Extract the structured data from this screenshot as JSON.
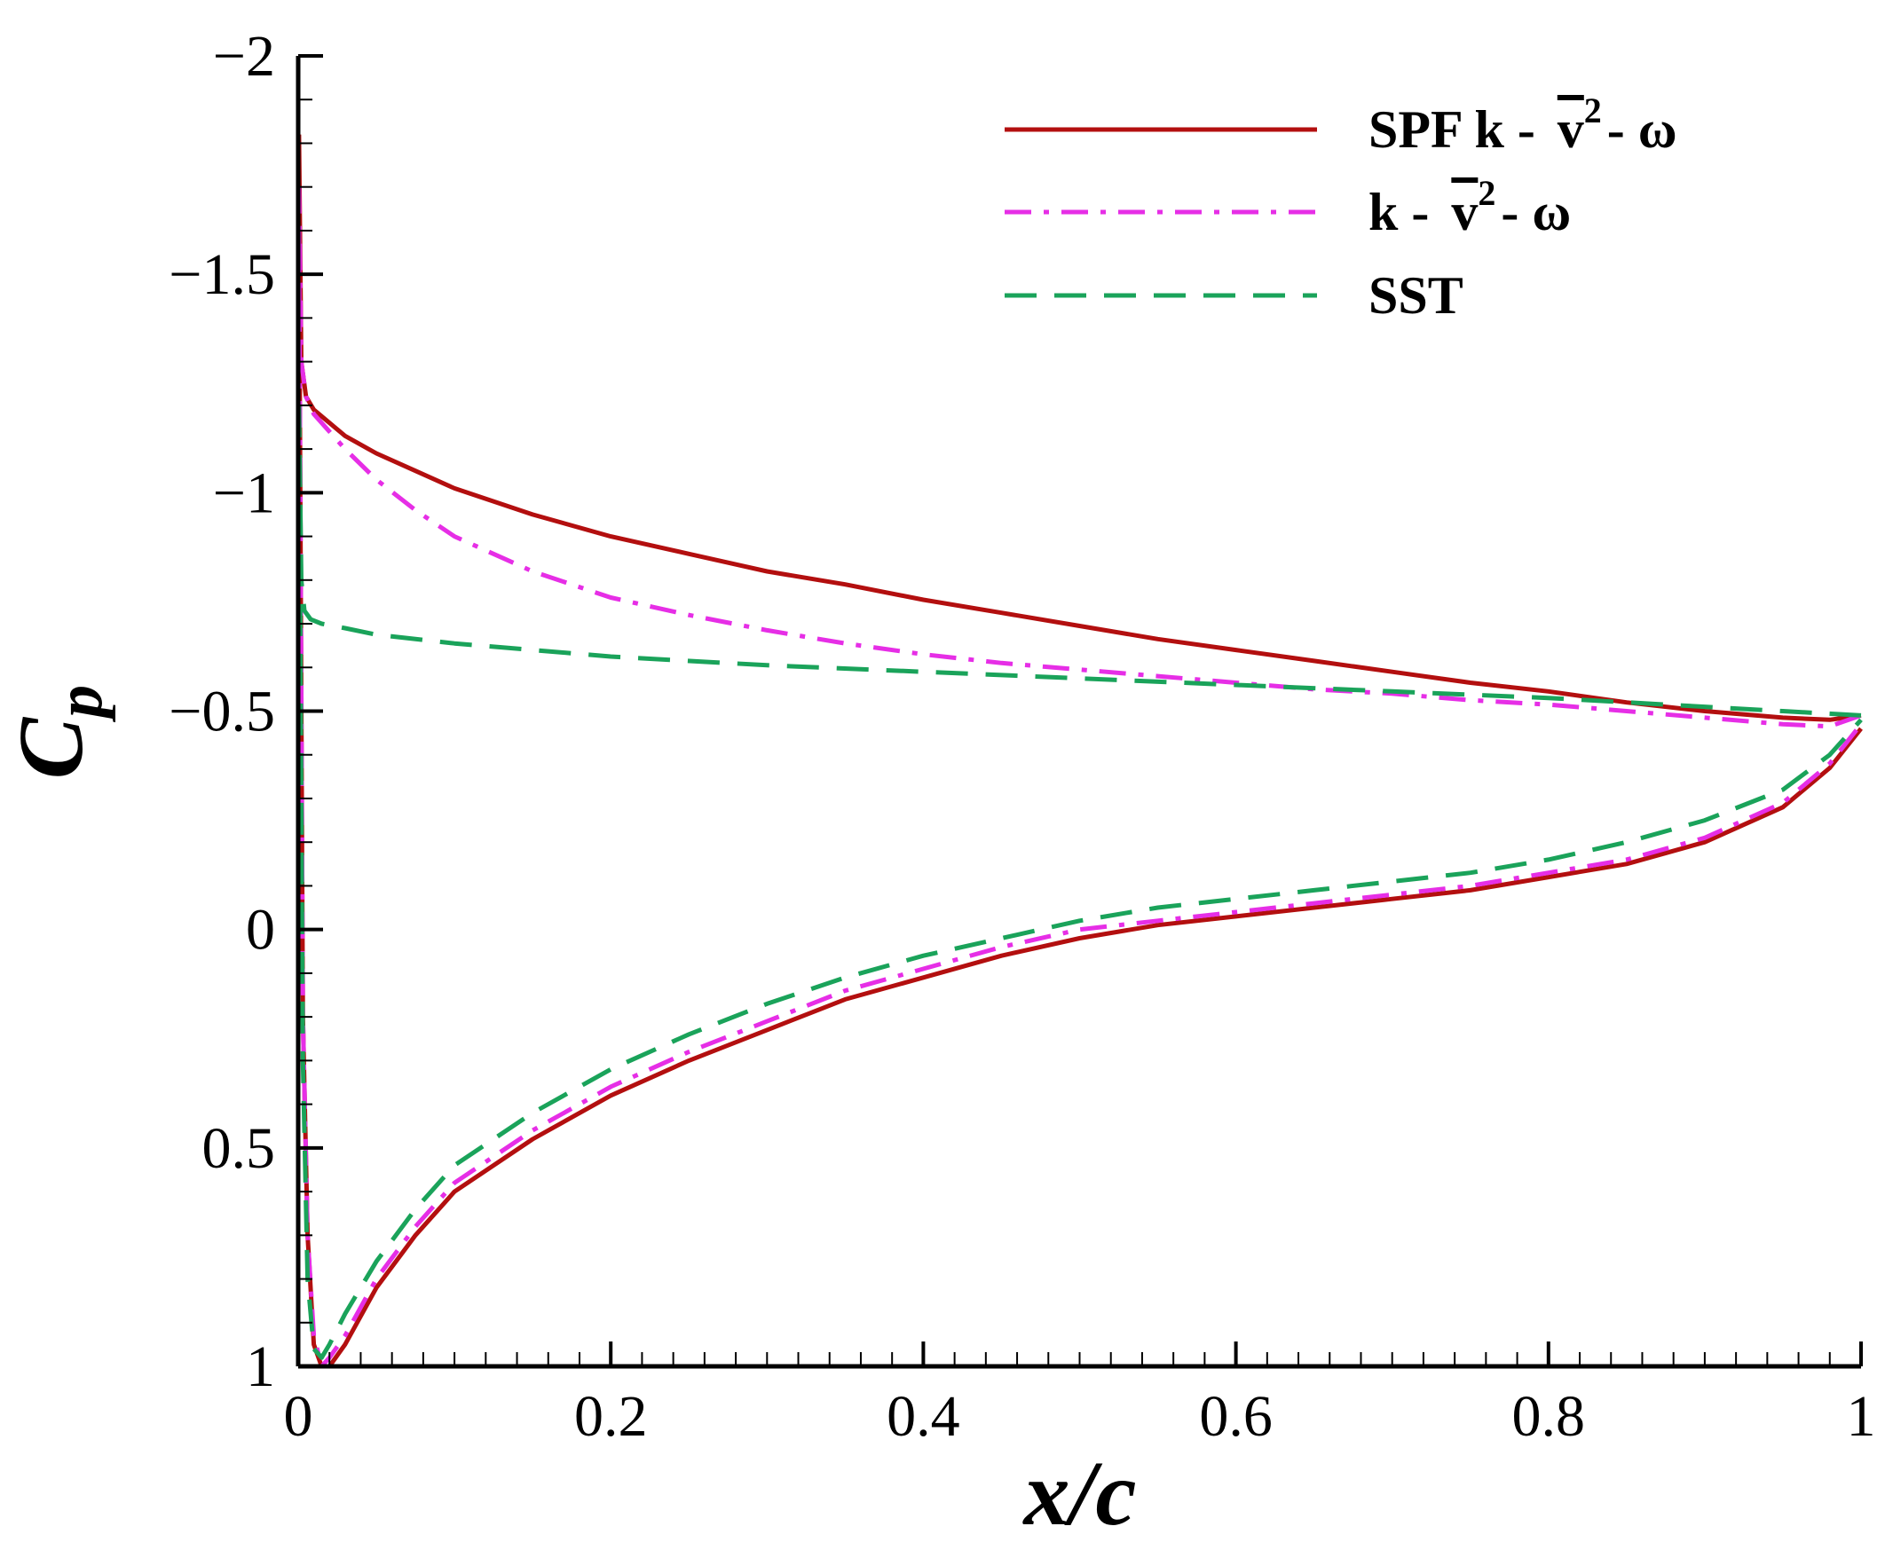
{
  "chart_data": {
    "type": "line",
    "title": "",
    "xlabel": "x/c",
    "ylabel": {
      "main": "C",
      "sub": "p"
    },
    "xlim": [
      0,
      1
    ],
    "ylim": [
      1,
      -2
    ],
    "y_inverted": true,
    "grid": false,
    "legend_position": "top-right",
    "x_ticks": [
      {
        "value": 0,
        "label": "0"
      },
      {
        "value": 0.2,
        "label": "0.2"
      },
      {
        "value": 0.4,
        "label": "0.4"
      },
      {
        "value": 0.6,
        "label": "0.6"
      },
      {
        "value": 0.8,
        "label": "0.8"
      },
      {
        "value": 1,
        "label": "1"
      }
    ],
    "y_ticks": [
      {
        "value": -2,
        "label": "−2"
      },
      {
        "value": -1.5,
        "label": "−1.5"
      },
      {
        "value": -1,
        "label": "−1"
      },
      {
        "value": -0.5,
        "label": "−0.5"
      },
      {
        "value": 0,
        "label": "0"
      },
      {
        "value": 0.5,
        "label": "0.5"
      },
      {
        "value": 1,
        "label": "1"
      }
    ],
    "series": [
      {
        "name": "SPF",
        "legend": {
          "prefix": "SPF k - ",
          "v": "v",
          "sup": "2",
          "suffix": "- ω"
        },
        "color": "#b30f0f",
        "style": "solid",
        "upper": {
          "x": [
            0.0005,
            0.002,
            0.005,
            0.01,
            0.02,
            0.03,
            0.05,
            0.075,
            0.1,
            0.15,
            0.2,
            0.25,
            0.3,
            0.35,
            0.4,
            0.45,
            0.5,
            0.55,
            0.6,
            0.65,
            0.7,
            0.75,
            0.8,
            0.85,
            0.9,
            0.95,
            0.98,
            1.0
          ],
          "y": [
            -1.82,
            -1.3,
            -1.22,
            -1.19,
            -1.16,
            -1.13,
            -1.09,
            -1.05,
            -1.01,
            -0.95,
            -0.9,
            -0.86,
            -0.82,
            -0.79,
            -0.755,
            -0.725,
            -0.695,
            -0.665,
            -0.64,
            -0.615,
            -0.59,
            -0.565,
            -0.545,
            -0.52,
            -0.5,
            -0.485,
            -0.48,
            -0.49
          ]
        },
        "lower": {
          "x": [
            0.0005,
            0.003,
            0.006,
            0.01,
            0.015,
            0.02,
            0.03,
            0.05,
            0.075,
            0.1,
            0.15,
            0.2,
            0.25,
            0.3,
            0.35,
            0.4,
            0.45,
            0.5,
            0.55,
            0.6,
            0.65,
            0.7,
            0.75,
            0.8,
            0.85,
            0.9,
            0.95,
            0.98,
            1.0
          ],
          "y": [
            -1.6,
            0.2,
            0.7,
            0.95,
            1.0,
            1.0,
            0.95,
            0.82,
            0.7,
            0.6,
            0.48,
            0.38,
            0.3,
            0.23,
            0.16,
            0.11,
            0.06,
            0.02,
            -0.01,
            -0.03,
            -0.05,
            -0.07,
            -0.09,
            -0.12,
            -0.15,
            -0.2,
            -0.28,
            -0.37,
            -0.46
          ]
        }
      },
      {
        "name": "k-v2-omega",
        "legend": {
          "prefix": "k - ",
          "v": "v",
          "sup": "2",
          "suffix": "- ω"
        },
        "color": "#e62ee6",
        "style": "dashdot",
        "upper": {
          "x": [
            0.0005,
            0.002,
            0.005,
            0.01,
            0.02,
            0.03,
            0.05,
            0.075,
            0.1,
            0.15,
            0.2,
            0.25,
            0.3,
            0.35,
            0.4,
            0.45,
            0.5,
            0.55,
            0.6,
            0.65,
            0.7,
            0.75,
            0.8,
            0.85,
            0.9,
            0.95,
            0.98,
            1.0
          ],
          "y": [
            -1.7,
            -1.3,
            -1.22,
            -1.18,
            -1.14,
            -1.1,
            -1.03,
            -0.96,
            -0.9,
            -0.82,
            -0.76,
            -0.72,
            -0.685,
            -0.655,
            -0.63,
            -0.61,
            -0.595,
            -0.58,
            -0.565,
            -0.55,
            -0.54,
            -0.525,
            -0.515,
            -0.5,
            -0.485,
            -0.47,
            -0.465,
            -0.49
          ]
        },
        "lower": {
          "x": [
            0.0005,
            0.003,
            0.006,
            0.01,
            0.015,
            0.02,
            0.03,
            0.05,
            0.075,
            0.1,
            0.15,
            0.2,
            0.25,
            0.3,
            0.35,
            0.4,
            0.45,
            0.5,
            0.55,
            0.6,
            0.65,
            0.7,
            0.75,
            0.8,
            0.85,
            0.9,
            0.95,
            0.98,
            1.0
          ],
          "y": [
            -1.6,
            0.2,
            0.7,
            0.93,
            1.0,
            0.98,
            0.93,
            0.8,
            0.68,
            0.58,
            0.46,
            0.36,
            0.28,
            0.21,
            0.14,
            0.09,
            0.04,
            0.0,
            -0.02,
            -0.04,
            -0.06,
            -0.08,
            -0.1,
            -0.13,
            -0.16,
            -0.21,
            -0.29,
            -0.38,
            -0.47
          ]
        }
      },
      {
        "name": "SST",
        "legend": {
          "prefix": "SST",
          "v": "",
          "sup": "",
          "suffix": ""
        },
        "color": "#1aa35a",
        "style": "dashed",
        "upper": {
          "x": [
            0.0005,
            0.002,
            0.004,
            0.008,
            0.015,
            0.03,
            0.05,
            0.1,
            0.15,
            0.2,
            0.3,
            0.4,
            0.5,
            0.6,
            0.7,
            0.8,
            0.9,
            0.95,
            1.0
          ],
          "y": [
            -1.2,
            -0.8,
            -0.73,
            -0.71,
            -0.7,
            -0.69,
            -0.675,
            -0.655,
            -0.64,
            -0.625,
            -0.605,
            -0.59,
            -0.575,
            -0.56,
            -0.545,
            -0.53,
            -0.51,
            -0.5,
            -0.49
          ]
        },
        "lower": {
          "x": [
            0.0005,
            0.003,
            0.006,
            0.01,
            0.015,
            0.02,
            0.03,
            0.05,
            0.075,
            0.1,
            0.15,
            0.2,
            0.25,
            0.3,
            0.35,
            0.4,
            0.45,
            0.5,
            0.55,
            0.6,
            0.65,
            0.7,
            0.75,
            0.8,
            0.85,
            0.9,
            0.95,
            0.98,
            1.0
          ],
          "y": [
            -1.2,
            0.3,
            0.8,
            0.96,
            0.98,
            0.95,
            0.88,
            0.76,
            0.64,
            0.54,
            0.42,
            0.32,
            0.24,
            0.17,
            0.11,
            0.06,
            0.02,
            -0.02,
            -0.05,
            -0.07,
            -0.09,
            -0.11,
            -0.13,
            -0.16,
            -0.2,
            -0.25,
            -0.32,
            -0.4,
            -0.48
          ]
        }
      }
    ]
  }
}
